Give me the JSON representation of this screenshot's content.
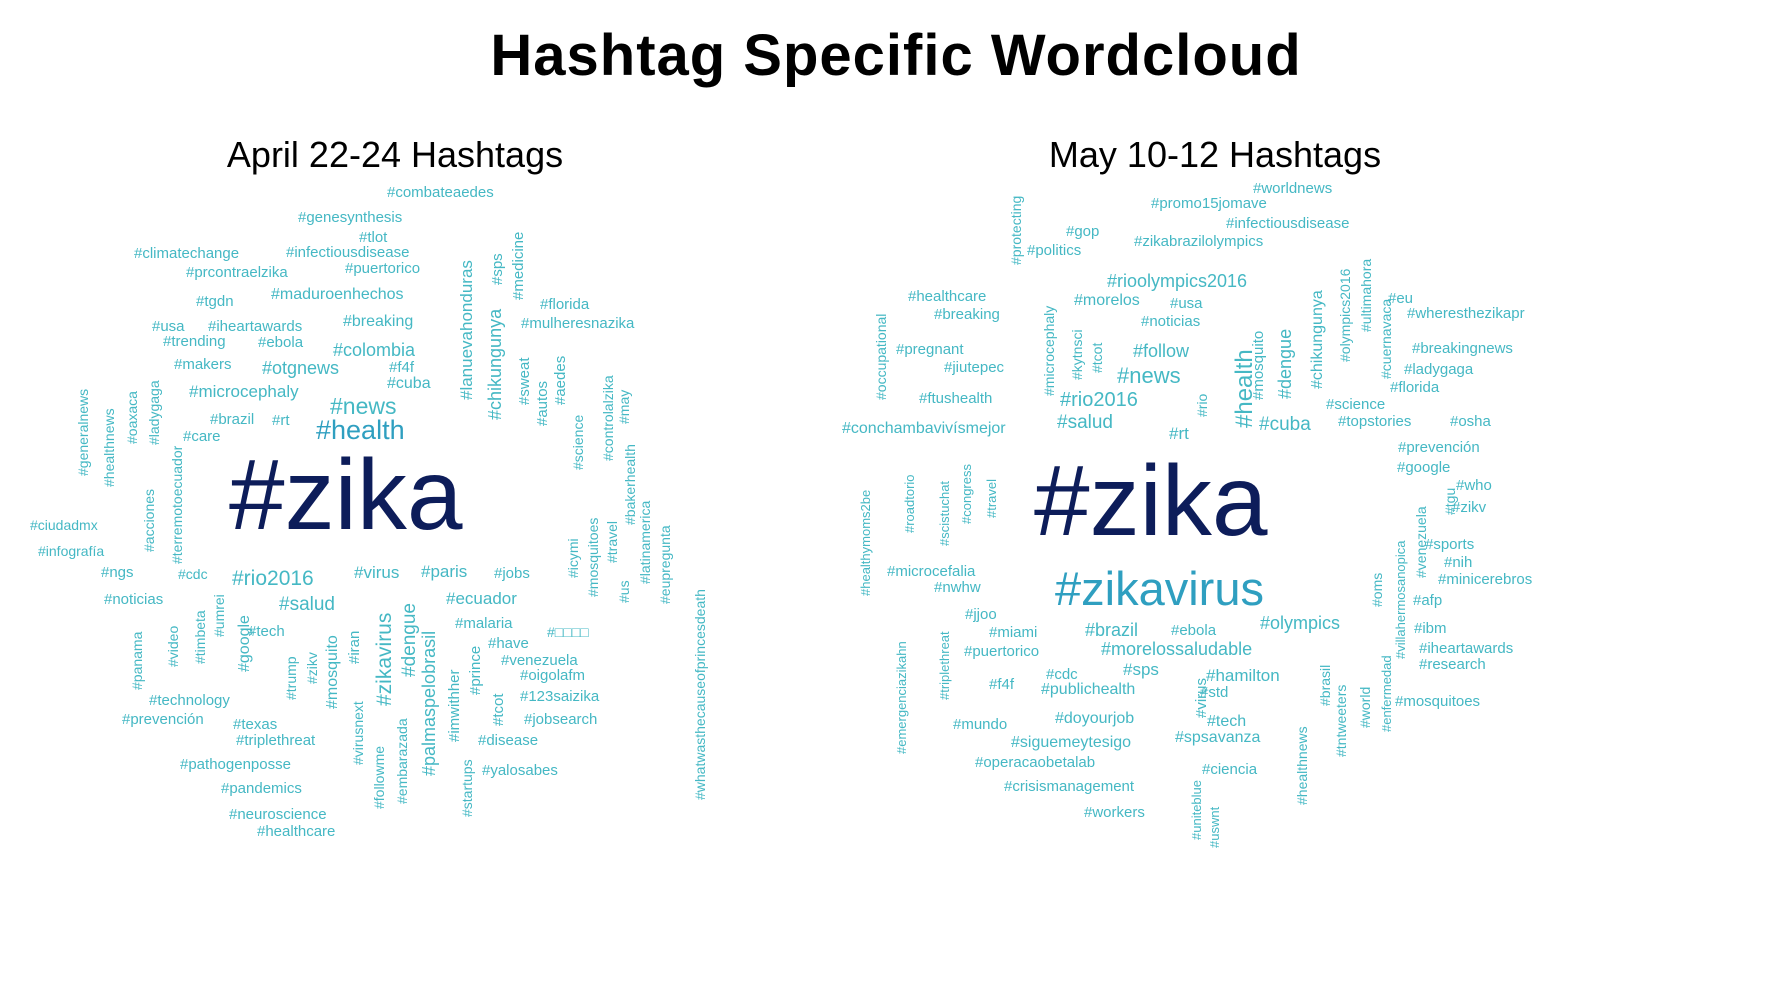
{
  "title": "Hashtag Specific Wordcloud",
  "colors": {
    "small": "#45b8c4",
    "medium": "#2f9fc0",
    "large": "#0d1d5a"
  },
  "panels": [
    {
      "title": "April 22-24 Hashtags",
      "words": [
        {
          "t": "#combateaedes"
        },
        {
          "t": "#genesynthesis"
        },
        {
          "t": "#tlot"
        },
        {
          "t": "#climatechange"
        },
        {
          "t": "#infectiousdisease"
        },
        {
          "t": "#prcontraelzika"
        },
        {
          "t": "#puertorico"
        },
        {
          "t": "#sps"
        },
        {
          "t": "#medicine"
        },
        {
          "t": "#tgdn"
        },
        {
          "t": "#maduroenhechos"
        },
        {
          "t": "#lanuevahonduras"
        },
        {
          "t": "#florida"
        },
        {
          "t": "#usa"
        },
        {
          "t": "#iheartawards"
        },
        {
          "t": "#breaking"
        },
        {
          "t": "#mulheresnazika"
        },
        {
          "t": "#trending"
        },
        {
          "t": "#ebola"
        },
        {
          "t": "#colombia"
        },
        {
          "t": "#chikungunya"
        },
        {
          "t": "#makers"
        },
        {
          "t": "#otgnews"
        },
        {
          "t": "#f4f"
        },
        {
          "t": "#sweat"
        },
        {
          "t": "#aedes"
        },
        {
          "t": "#cuba"
        },
        {
          "t": "#microcephaly"
        },
        {
          "t": "#autos"
        },
        {
          "t": "#generalnews"
        },
        {
          "t": "#healthnews"
        },
        {
          "t": "#oaxaca"
        },
        {
          "t": "#ladygaga"
        },
        {
          "t": "#news"
        },
        {
          "t": "#brazil"
        },
        {
          "t": "#rt"
        },
        {
          "t": "#controlalzika"
        },
        {
          "t": "#may"
        },
        {
          "t": "#care"
        },
        {
          "t": "#health"
        },
        {
          "t": "#science"
        },
        {
          "t": "#terremotoecuador"
        },
        {
          "t": "#bakerhealth"
        },
        {
          "t": "#acciones"
        },
        {
          "t": "#zika"
        },
        {
          "t": "#ciudadmx"
        },
        {
          "t": "#latinamerica"
        },
        {
          "t": "#icymi"
        },
        {
          "t": "#mosquitoes"
        },
        {
          "t": "#travel"
        },
        {
          "t": "#eupregunta"
        },
        {
          "t": "#infografía"
        },
        {
          "t": "#ngs"
        },
        {
          "t": "#cdc"
        },
        {
          "t": "#rio2016"
        },
        {
          "t": "#virus"
        },
        {
          "t": "#paris"
        },
        {
          "t": "#jobs"
        },
        {
          "t": "#us"
        },
        {
          "t": "#noticias"
        },
        {
          "t": "#ecuador"
        },
        {
          "t": "#whatwasthecauseofprincesdeath"
        },
        {
          "t": "#salud"
        },
        {
          "t": "#timbeta"
        },
        {
          "t": "#umrei"
        },
        {
          "t": "#malaria"
        },
        {
          "t": "#□□□□"
        },
        {
          "t": "#tech"
        },
        {
          "t": "#panama"
        },
        {
          "t": "#video"
        },
        {
          "t": "#google"
        },
        {
          "t": "#zikavirus"
        },
        {
          "t": "#dengue"
        },
        {
          "t": "#have"
        },
        {
          "t": "#iran"
        },
        {
          "t": "#mosquito"
        },
        {
          "t": "#venezuela"
        },
        {
          "t": "#zikv"
        },
        {
          "t": "#trump"
        },
        {
          "t": "#palmaspelobrasil"
        },
        {
          "t": "#oigolafm"
        },
        {
          "t": "#prince"
        },
        {
          "t": "#123saizika"
        },
        {
          "t": "#technology"
        },
        {
          "t": "#imwithher"
        },
        {
          "t": "#prevención"
        },
        {
          "t": "#tcot"
        },
        {
          "t": "#jobsearch"
        },
        {
          "t": "#texas"
        },
        {
          "t": "#virusnext"
        },
        {
          "t": "#triplethreat"
        },
        {
          "t": "#disease"
        },
        {
          "t": "#followme"
        },
        {
          "t": "#embarazada"
        },
        {
          "t": "#pathogenposse"
        },
        {
          "t": "#yalosabes"
        },
        {
          "t": "#startups"
        },
        {
          "t": "#pandemics"
        },
        {
          "t": "#neuroscience"
        },
        {
          "t": "#healthcare"
        }
      ]
    },
    {
      "title": "May 10-12 Hashtags",
      "words": [
        {
          "t": "#worldnews"
        },
        {
          "t": "#protecting"
        },
        {
          "t": "#promo15jomave"
        },
        {
          "t": "#infectiousdisease"
        },
        {
          "t": "#gop"
        },
        {
          "t": "#zikabrazilolympics"
        },
        {
          "t": "#politics"
        },
        {
          "t": "#rioolympics2016"
        },
        {
          "t": "#ultimahora"
        },
        {
          "t": "#olympics2016"
        },
        {
          "t": "#healthcare"
        },
        {
          "t": "#morelos"
        },
        {
          "t": "#usa"
        },
        {
          "t": "#eu"
        },
        {
          "t": "#breaking"
        },
        {
          "t": "#noticias"
        },
        {
          "t": "#wheresthezikapr"
        },
        {
          "t": "#cuernavaca"
        },
        {
          "t": "#chikungunya"
        },
        {
          "t": "#occupational"
        },
        {
          "t": "#microcephaly"
        },
        {
          "t": "#pregnant"
        },
        {
          "t": "#kytnsci"
        },
        {
          "t": "#tcot"
        },
        {
          "t": "#follow"
        },
        {
          "t": "#breakingnews"
        },
        {
          "t": "#jiutepec"
        },
        {
          "t": "#news"
        },
        {
          "t": "#mosquito"
        },
        {
          "t": "#dengue"
        },
        {
          "t": "#ladygaga"
        },
        {
          "t": "#health"
        },
        {
          "t": "#florida"
        },
        {
          "t": "#ftushealth"
        },
        {
          "t": "#rio2016"
        },
        {
          "t": "#rio"
        },
        {
          "t": "#science"
        },
        {
          "t": "#salud"
        },
        {
          "t": "#cuba"
        },
        {
          "t": "#topstories"
        },
        {
          "t": "#osha"
        },
        {
          "t": "#conchambavivísmejor"
        },
        {
          "t": "#rt"
        },
        {
          "t": "#prevención"
        },
        {
          "t": "#google"
        },
        {
          "t": "#healthymoms2be"
        },
        {
          "t": "#roadtorio"
        },
        {
          "t": "#scistuchat"
        },
        {
          "t": "#congress"
        },
        {
          "t": "#travel"
        },
        {
          "t": "#zika"
        },
        {
          "t": "#who"
        },
        {
          "t": "#tgu"
        },
        {
          "t": "#zikv"
        },
        {
          "t": "#villahermosanopica"
        },
        {
          "t": "#venezuela"
        },
        {
          "t": "#sports"
        },
        {
          "t": "#nih"
        },
        {
          "t": "#microcefalia"
        },
        {
          "t": "#zikavirus"
        },
        {
          "t": "#oms"
        },
        {
          "t": "#minicerebros"
        },
        {
          "t": "#nwhw"
        },
        {
          "t": "#afp"
        },
        {
          "t": "#jjoo"
        },
        {
          "t": "#miami"
        },
        {
          "t": "#brazil"
        },
        {
          "t": "#ebola"
        },
        {
          "t": "#olympics"
        },
        {
          "t": "#ibm"
        },
        {
          "t": "#emergenciazikahn"
        },
        {
          "t": "#triplethreat"
        },
        {
          "t": "#puertorico"
        },
        {
          "t": "#morelossaludable"
        },
        {
          "t": "#iheartawards"
        },
        {
          "t": "#research"
        },
        {
          "t": "#enfermedad"
        },
        {
          "t": "#cdc"
        },
        {
          "t": "#sps"
        },
        {
          "t": "#hamilton"
        },
        {
          "t": "#f4f"
        },
        {
          "t": "#publichealth"
        },
        {
          "t": "#std"
        },
        {
          "t": "#brasil"
        },
        {
          "t": "#virus"
        },
        {
          "t": "#world"
        },
        {
          "t": "#tntweeters"
        },
        {
          "t": "#mosquitoes"
        },
        {
          "t": "#mundo"
        },
        {
          "t": "#doyourjob"
        },
        {
          "t": "#tech"
        },
        {
          "t": "#siguemeytesigo"
        },
        {
          "t": "#spsavanza"
        },
        {
          "t": "#healthnews"
        },
        {
          "t": "#operacaobetalab"
        },
        {
          "t": "#ciencia"
        },
        {
          "t": "#crisismanagement"
        },
        {
          "t": "#workers"
        },
        {
          "t": "#uniteblue"
        },
        {
          "t": "#uswnt"
        }
      ]
    }
  ]
}
